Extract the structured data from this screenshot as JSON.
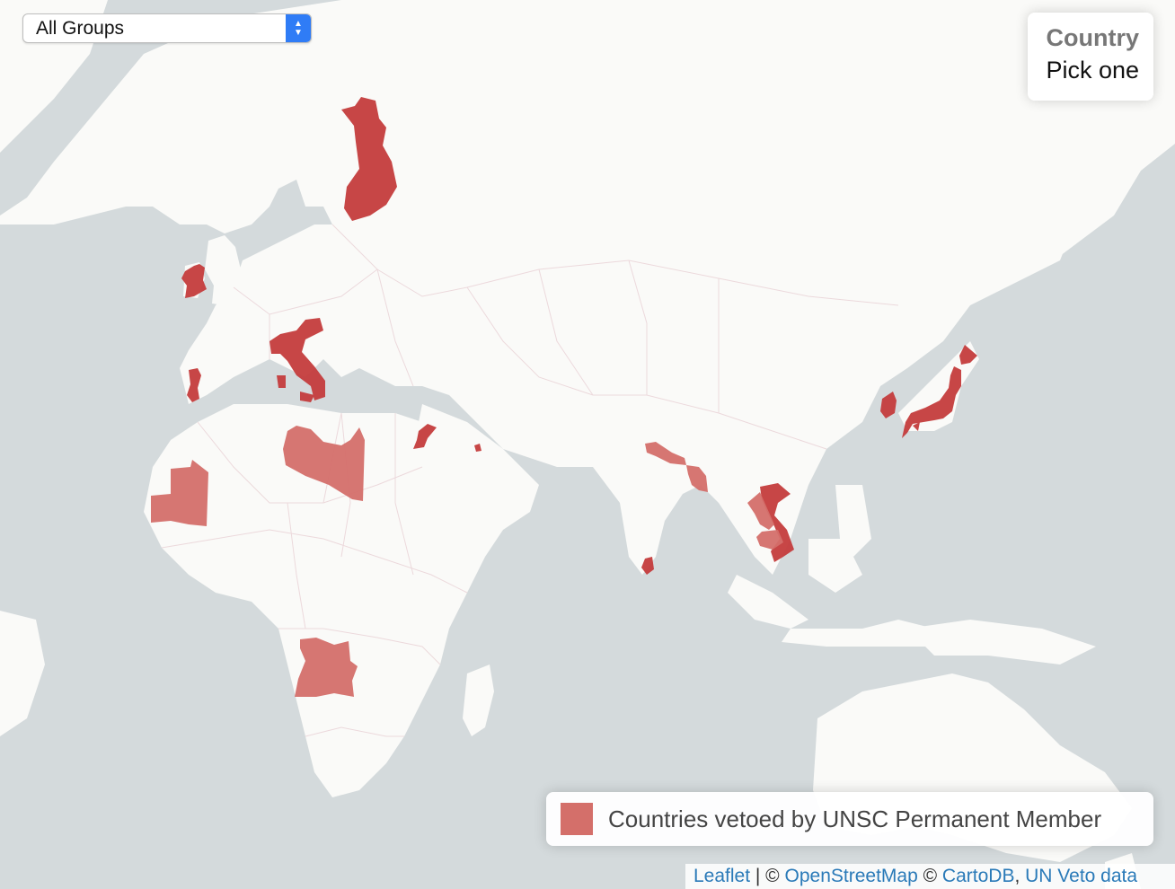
{
  "map": {
    "layer_select": {
      "selected": "All Groups"
    },
    "info_panel": {
      "title": "Country",
      "hint": "Pick one"
    },
    "legend": {
      "label": "Countries vetoed by UNSC Permanent Member",
      "color": "#d46f6a"
    },
    "highlight_colors": {
      "dark": "#c43c3c",
      "light": "#d46f6a"
    },
    "attribution": {
      "leaflet": "Leaflet",
      "sep1": " | © ",
      "osm": "OpenStreetMap",
      "sep2": " © ",
      "carto": "CartoDB",
      "sep3": ", ",
      "veto": "UN Veto data"
    },
    "highlighted_countries": [
      {
        "name": "Finland",
        "shade": "dark"
      },
      {
        "name": "Ireland",
        "shade": "dark"
      },
      {
        "name": "Italy",
        "shade": "dark"
      },
      {
        "name": "Portugal",
        "shade": "dark"
      },
      {
        "name": "Libya",
        "shade": "light"
      },
      {
        "name": "Mauritania",
        "shade": "light"
      },
      {
        "name": "Angola",
        "shade": "light"
      },
      {
        "name": "Jordan",
        "shade": "dark"
      },
      {
        "name": "Nepal",
        "shade": "light"
      },
      {
        "name": "Bangladesh",
        "shade": "light"
      },
      {
        "name": "Sri Lanka",
        "shade": "dark"
      },
      {
        "name": "Vietnam",
        "shade": "dark"
      },
      {
        "name": "Laos",
        "shade": "light"
      },
      {
        "name": "Cambodia",
        "shade": "light"
      },
      {
        "name": "South Korea",
        "shade": "dark"
      },
      {
        "name": "Japan",
        "shade": "dark"
      }
    ]
  }
}
